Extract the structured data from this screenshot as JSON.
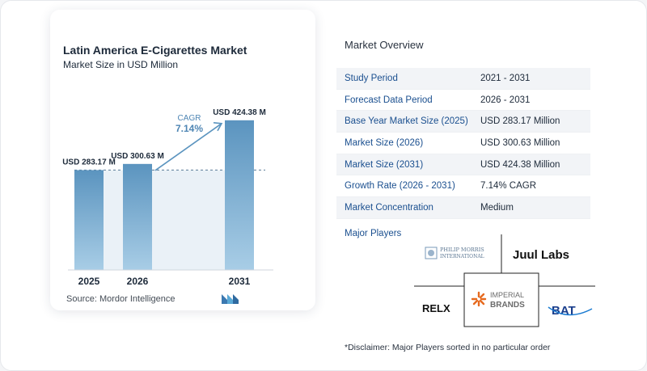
{
  "chart_data": {
    "type": "bar",
    "title": "Latin America E-Cigarettes Market",
    "subtitle": "Market Size in USD Million",
    "categories": [
      "2025",
      "2026",
      "2031"
    ],
    "values": [
      283.17,
      300.63,
      424.38
    ],
    "data_labels": [
      "USD 283.17 M",
      "USD 300.63 M",
      "USD 424.38 M"
    ],
    "ylim": [
      0,
      440
    ],
    "cagr_label": "CAGR",
    "cagr_value": "7.14%",
    "bar_color": "#5b94bf",
    "bar_color_light": "#a8cde6",
    "grid": false
  },
  "source": "Source:  Mordor Intelligence",
  "overview": {
    "title": "Market Overview",
    "rows": [
      {
        "key": "Study Period",
        "value": "2021 - 2031"
      },
      {
        "key": "Forecast Data Period",
        "value": "2026 - 2031"
      },
      {
        "key": "Base Year Market Size (2025)",
        "value": "USD 283.17 Million"
      },
      {
        "key": "Market Size (2026)",
        "value": "USD 300.63 Million"
      },
      {
        "key": "Market Size (2031)",
        "value": "USD 424.38 Million"
      },
      {
        "key": "Growth Rate (2026 - 2031)",
        "value": "7.14% CAGR"
      },
      {
        "key": "Market Concentration",
        "value": "Medium"
      }
    ]
  },
  "players": {
    "title": "Major Players",
    "logos": {
      "pmi_line1": "PHILIP MORRIS",
      "pmi_line2": "INTERNATIONAL",
      "juul": "Juul Labs",
      "relx": "RELX",
      "imperial_line1": "IMPERIAL",
      "imperial_line2": "BRANDS",
      "bat": "BAT"
    }
  },
  "disclaimer": "*Disclaimer: Major Players sorted in no particular order"
}
